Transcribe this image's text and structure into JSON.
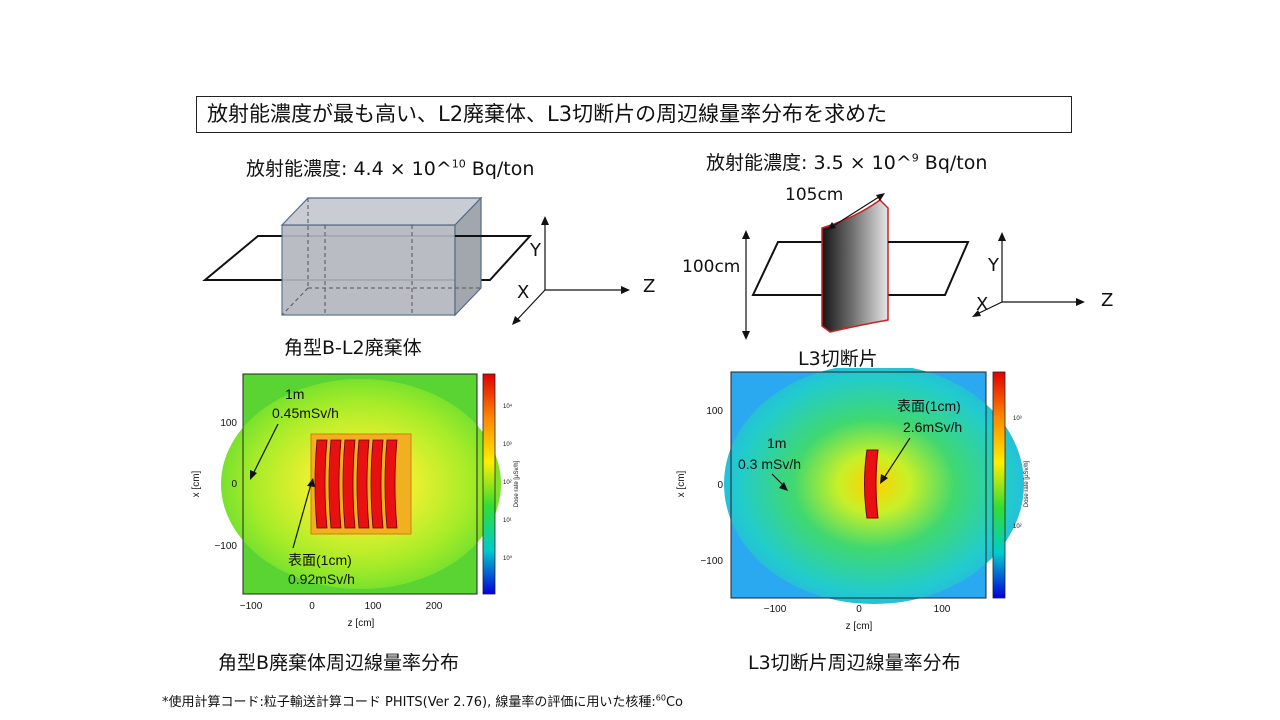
{
  "headline": "放射能濃度が最も高い、L2廃棄体、L3切断片の周辺線量率分布を求めた",
  "left": {
    "concentration_prefix": "放射能濃度: 4.4 × 10^",
    "concentration_exp": "10",
    "concentration_unit": " Bq/ton",
    "object_label": "角型B-L2廃棄体",
    "axes": {
      "y": "Y",
      "x": "X",
      "z": "Z"
    },
    "caption": "角型B廃棄体周辺線量率分布",
    "plot": {
      "xlabel": "z [cm]",
      "ylabel": "x [cm]",
      "xticks": [
        "−100",
        "0",
        "100",
        "200"
      ],
      "yticks": [
        "100",
        "0",
        "−100"
      ],
      "colorbar_label": "Dose rate [μSv/h]",
      "colorbar_ticks": [
        "10⁴",
        "10³",
        "10²",
        "10¹",
        "10⁰"
      ],
      "annot1_line1": "1m",
      "annot1_line2": "0.45mSv/h",
      "annot2_line1": "表面(1cm)",
      "annot2_line2": "0.92mSv/h"
    }
  },
  "right": {
    "concentration_prefix": "放射能濃度: 3.5 × 10^",
    "concentration_exp": "9",
    "concentration_unit": " Bq/ton",
    "object_label": "L3切断片",
    "dim_width": "105cm",
    "dim_height": "100cm",
    "axes": {
      "y": "Y",
      "x": "X",
      "z": "Z"
    },
    "caption": "L3切断片周辺線量率分布",
    "plot": {
      "xlabel": "z [cm]",
      "ylabel": "x [cm]",
      "xticks": [
        "−100",
        "0",
        "100"
      ],
      "yticks": [
        "100",
        "0",
        "−100"
      ],
      "colorbar_label": "Dose rate [μSv/h]",
      "colorbar_ticks": [
        "10³",
        "10²"
      ],
      "annot1_line1": "表面(1cm)",
      "annot1_line2": "2.6mSv/h",
      "annot2_line1": "1m",
      "annot2_line2": "0.3 mSv/h"
    }
  },
  "footnote_main": "*使用計算コード:粒子輸送計算コード PHITS(Ver 2.76), 線量率の評価に用いた核種:",
  "footnote_mass": "60",
  "footnote_element": "Co"
}
